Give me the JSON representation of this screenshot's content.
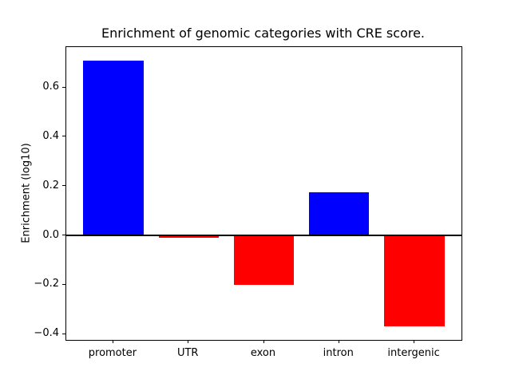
{
  "chart_data": {
    "type": "bar",
    "title": "Enrichment of genomic categories with CRE score.",
    "xlabel": "",
    "ylabel": "Enrichment (log10)",
    "categories": [
      "promoter",
      "UTR",
      "exon",
      "intron",
      "intergenic"
    ],
    "values": [
      0.71,
      -0.01,
      -0.2,
      0.175,
      -0.37
    ],
    "bar_colors": [
      "#0000ff",
      "#ff0000",
      "#ff0000",
      "#0000ff",
      "#ff0000"
    ],
    "positive_color": "#0000ff",
    "negative_color": "#ff0000",
    "ylim": [
      -0.424,
      0.764
    ],
    "yticks": [
      {
        "value": -0.4,
        "label": "−0.4"
      },
      {
        "value": -0.2,
        "label": "−0.2"
      },
      {
        "value": 0.0,
        "label": "0.0"
      },
      {
        "value": 0.2,
        "label": "0.2"
      },
      {
        "value": 0.4,
        "label": "0.4"
      },
      {
        "value": 0.6,
        "label": "0.6"
      }
    ],
    "zero_line": true,
    "grid": false,
    "legend": null,
    "plot_bg": "#ffffff"
  }
}
